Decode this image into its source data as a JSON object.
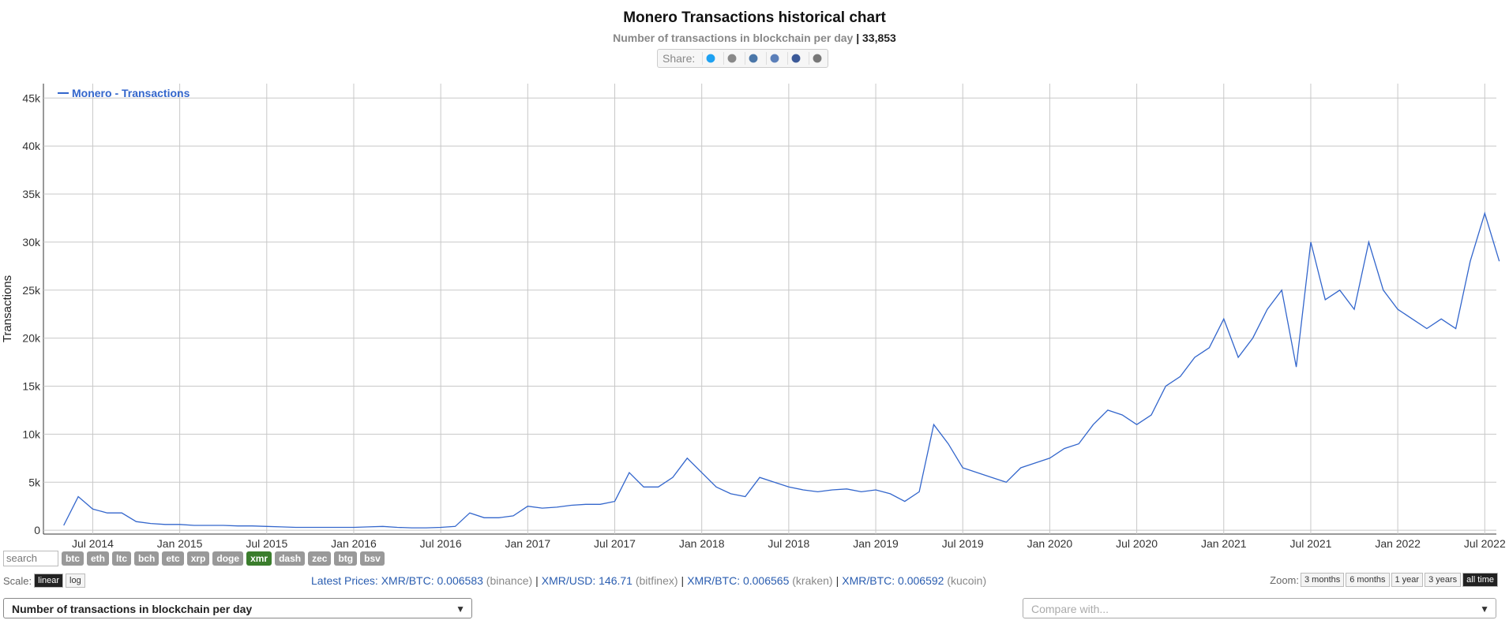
{
  "header": {
    "title": "Monero Transactions historical chart",
    "subtitle": "Number of transactions in blockchain per day",
    "subtitle_value": "| 33,853",
    "share_label": "Share:"
  },
  "chart_data": {
    "type": "line",
    "y_label": "Transactions",
    "x": [
      "May 2014",
      "Jun 2014",
      "Jul 2014",
      "Aug 2014",
      "Sep 2014",
      "Oct 2014",
      "Nov 2014",
      "Dec 2014",
      "Jan 2015",
      "Feb 2015",
      "Mar 2015",
      "Apr 2015",
      "May 2015",
      "Jun 2015",
      "Jul 2015",
      "Aug 2015",
      "Sep 2015",
      "Oct 2015",
      "Nov 2015",
      "Dec 2015",
      "Jan 2016",
      "Feb 2016",
      "Mar 2016",
      "Apr 2016",
      "May 2016",
      "Jun 2016",
      "Jul 2016",
      "Aug 2016",
      "Sep 2016",
      "Oct 2016",
      "Nov 2016",
      "Dec 2016",
      "Jan 2017",
      "Feb 2017",
      "Mar 2017",
      "Apr 2017",
      "May 2017",
      "Jun 2017",
      "Jul 2017",
      "Aug 2017",
      "Sep 2017",
      "Oct 2017",
      "Nov 2017",
      "Dec 2017",
      "Jan 2018",
      "Feb 2018",
      "Mar 2018",
      "Apr 2018",
      "May 2018",
      "Jun 2018",
      "Jul 2018",
      "Aug 2018",
      "Sep 2018",
      "Oct 2018",
      "Nov 2018",
      "Dec 2018",
      "Jan 2019",
      "Feb 2019",
      "Mar 2019",
      "Apr 2019",
      "May 2019",
      "Jun 2019",
      "Jul 2019",
      "Aug 2019",
      "Sep 2019",
      "Oct 2019",
      "Nov 2019",
      "Dec 2019",
      "Jan 2020",
      "Feb 2020",
      "Mar 2020",
      "Apr 2020",
      "May 2020",
      "Jun 2020",
      "Jul 2020",
      "Aug 2020",
      "Sep 2020",
      "Oct 2020",
      "Nov 2020",
      "Dec 2020",
      "Jan 2021",
      "Feb 2021",
      "Mar 2021",
      "Apr 2021",
      "May 2021",
      "Jun 2021",
      "Jul 2021",
      "Aug 2021",
      "Sep 2021",
      "Oct 2021",
      "Nov 2021",
      "Dec 2021",
      "Jan 2022",
      "Feb 2022",
      "Mar 2022",
      "Apr 2022",
      "May 2022",
      "Jun 2022",
      "Jul 2022",
      "Aug 2022"
    ],
    "series": [
      {
        "name": "Monero - Transactions",
        "color": "#3366cc",
        "values": [
          500,
          3500,
          2200,
          1800,
          1800,
          900,
          700,
          600,
          600,
          500,
          500,
          500,
          450,
          450,
          400,
          350,
          300,
          300,
          300,
          300,
          300,
          350,
          400,
          300,
          250,
          250,
          300,
          400,
          1800,
          1300,
          1300,
          1500,
          2500,
          2300,
          2400,
          2600,
          2700,
          2700,
          3000,
          6000,
          4500,
          4500,
          5500,
          7500,
          6000,
          4500,
          3800,
          3500,
          5500,
          5000,
          4500,
          4200,
          4000,
          4200,
          4300,
          4000,
          4200,
          3800,
          3000,
          4000,
          11000,
          9000,
          6500,
          6000,
          5500,
          5000,
          6500,
          7000,
          7500,
          8500,
          9000,
          11000,
          12500,
          12000,
          11000,
          12000,
          15000,
          16000,
          18000,
          19000,
          22000,
          18000,
          20000,
          23000,
          25000,
          17000,
          30000,
          24000,
          25000,
          23000,
          30000,
          25000,
          23000,
          22000,
          21000,
          22000,
          21000,
          28000,
          33000,
          28000
        ]
      }
    ],
    "xticks": [
      "Jul 2014",
      "Jan 2015",
      "Jul 2015",
      "Jan 2016",
      "Jul 2016",
      "Jan 2017",
      "Jul 2017",
      "Jan 2018",
      "Jul 2018",
      "Jan 2019",
      "Jul 2019",
      "Jan 2020",
      "Jul 2020",
      "Jan 2021",
      "Jul 2021",
      "Jan 2022",
      "Jul 2022"
    ],
    "ylim": [
      -400,
      46500
    ],
    "yticks": [
      0,
      {
        "value": 5000,
        "label": "5k"
      },
      {
        "value": 10000,
        "label": "10k"
      },
      {
        "value": 15000,
        "label": "15k"
      },
      {
        "value": 20000,
        "label": "20k"
      },
      {
        "value": 25000,
        "label": "25k"
      },
      {
        "value": 30000,
        "label": "30k"
      },
      {
        "value": 35000,
        "label": "35k"
      },
      {
        "value": 40000,
        "label": "40k"
      },
      {
        "value": 45000,
        "label": "45k"
      }
    ],
    "grid": true,
    "legend": "top-left"
  },
  "controls": {
    "search": "search",
    "coins": [
      "btc",
      "eth",
      "ltc",
      "bch",
      "etc",
      "xrp",
      "doge",
      "xmr",
      "dash",
      "zec",
      "btg",
      "bsv"
    ],
    "active_coin": "xmr",
    "scale_label": "Scale:",
    "scales": [
      "linear",
      "log"
    ],
    "active_scale": "linear",
    "prices_label": "Latest Prices:",
    "prices": [
      {
        "pair": "XMR/BTC: 0.006583",
        "source": "(binance)"
      },
      {
        "pair": "XMR/USD: 146.71",
        "source": "(bitfinex)"
      },
      {
        "pair": "XMR/BTC: 0.006565",
        "source": "(kraken)"
      },
      {
        "pair": "XMR/BTC: 0.006592",
        "source": "(kucoin)"
      }
    ],
    "price_separator": "|",
    "zoom_label": "Zoom:",
    "zooms": [
      "3 months",
      "6 months",
      "1 year",
      "3 years",
      "all time"
    ],
    "active_zoom": "all time",
    "metric_select": "Number of transactions in blockchain per day",
    "compare_select": "Compare with..."
  }
}
